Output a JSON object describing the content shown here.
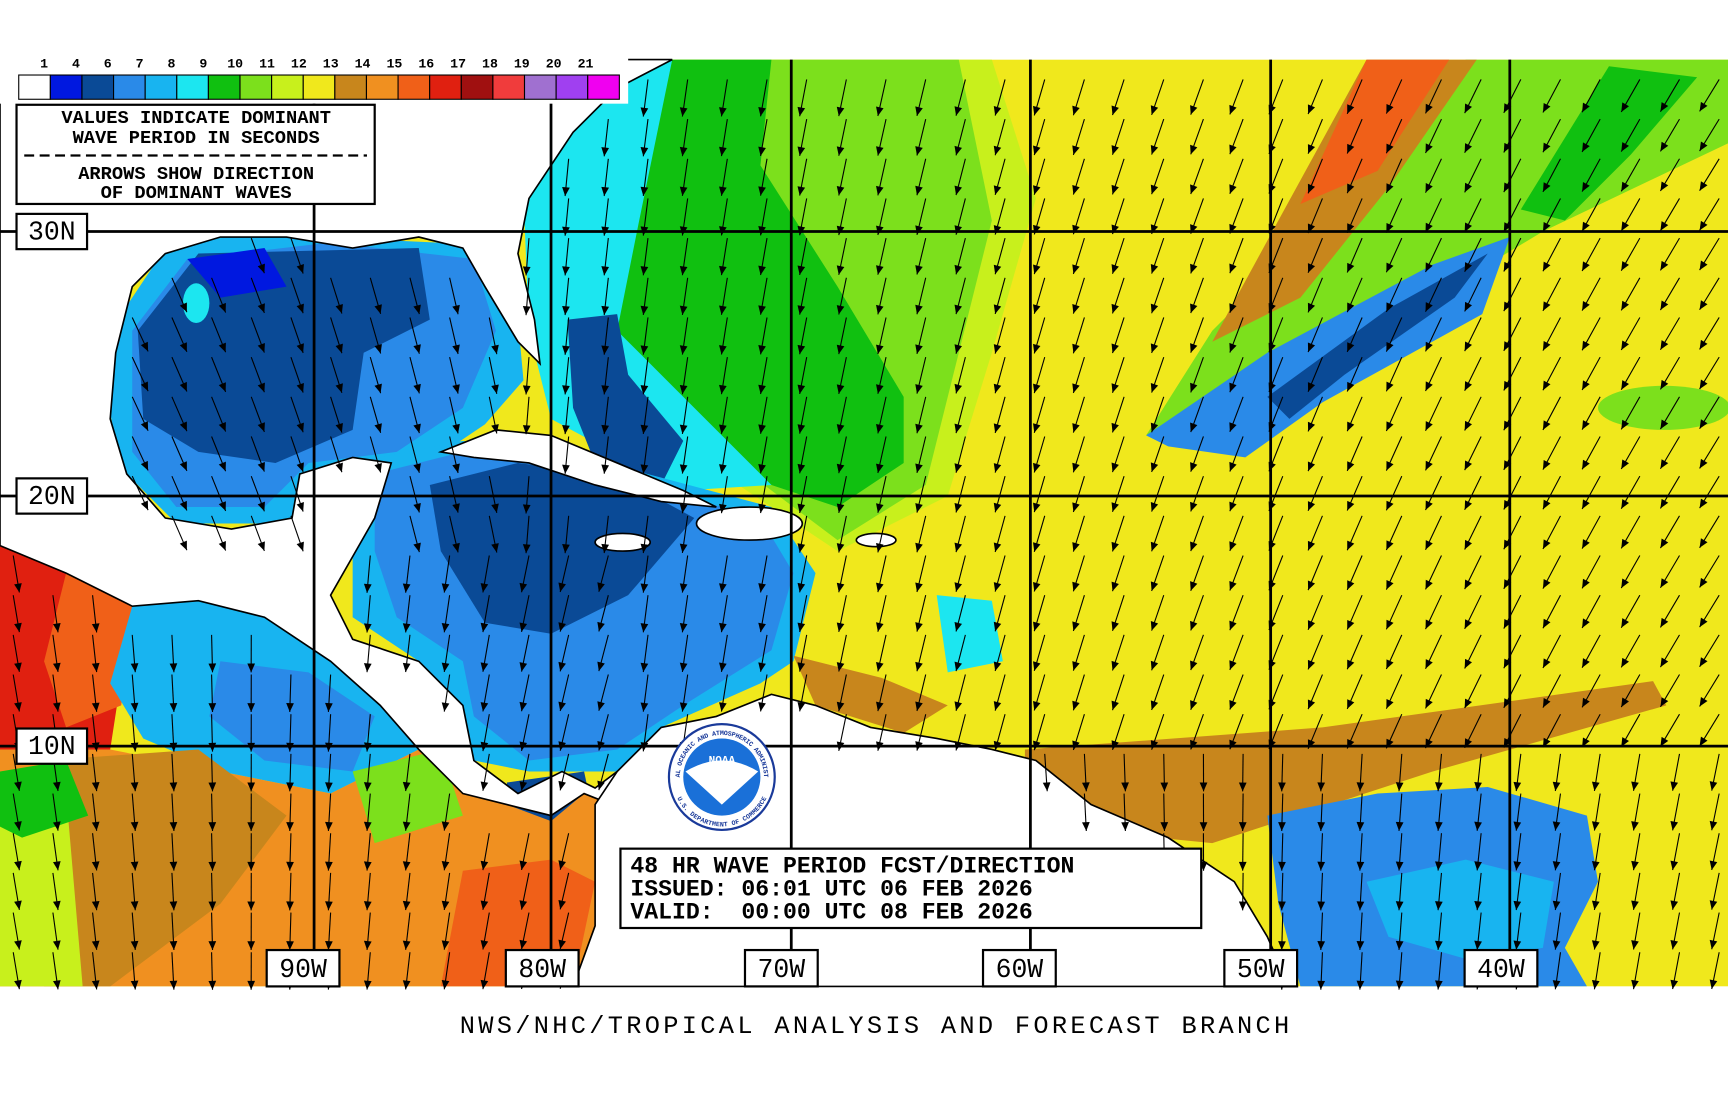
{
  "legend": {
    "labels": [
      "1",
      "4",
      "6",
      "7",
      "8",
      "9",
      "10",
      "11",
      "12",
      "13",
      "14",
      "15",
      "16",
      "17",
      "18",
      "19",
      "20",
      "21"
    ],
    "colors": [
      "#ffffff",
      "#0018e0",
      "#0a4a96",
      "#2a8ae8",
      "#18b4f0",
      "#1ce6f0",
      "#10c010",
      "#7ce01c",
      "#c8f01c",
      "#f0e81c",
      "#c8861c",
      "#f09020",
      "#f06018",
      "#e02010",
      "#a01010",
      "#f03c3c",
      "#a070d0",
      "#a040f0",
      "#f000f0"
    ]
  },
  "info_box": {
    "lines": [
      "VALUES INDICATE DOMINANT",
      "WAVE PERIOD IN SECONDS",
      "ARROWS SHOW DIRECTION",
      "OF DOMINANT WAVES"
    ]
  },
  "latitude_labels": [
    "30N",
    "20N",
    "10N"
  ],
  "longitude_labels": [
    "90W",
    "80W",
    "70W",
    "60W",
    "50W",
    "40W"
  ],
  "forecast_box": {
    "lines": [
      "48 HR WAVE PERIOD FCST/DIRECTION",
      "ISSUED: 06:01 UTC 06 FEB 2026",
      "VALID:  00:00 UTC 08 FEB 2026"
    ]
  },
  "logo": {
    "text": "NOAA",
    "ring_top": "NATIONAL OCEANIC AND ATMOSPHERIC ADMINISTRATION",
    "ring_bottom": "U.S. DEPARTMENT OF COMMERCE"
  },
  "footer": "NWS/NHC/TROPICAL ANALYSIS AND FORECAST BRANCH"
}
